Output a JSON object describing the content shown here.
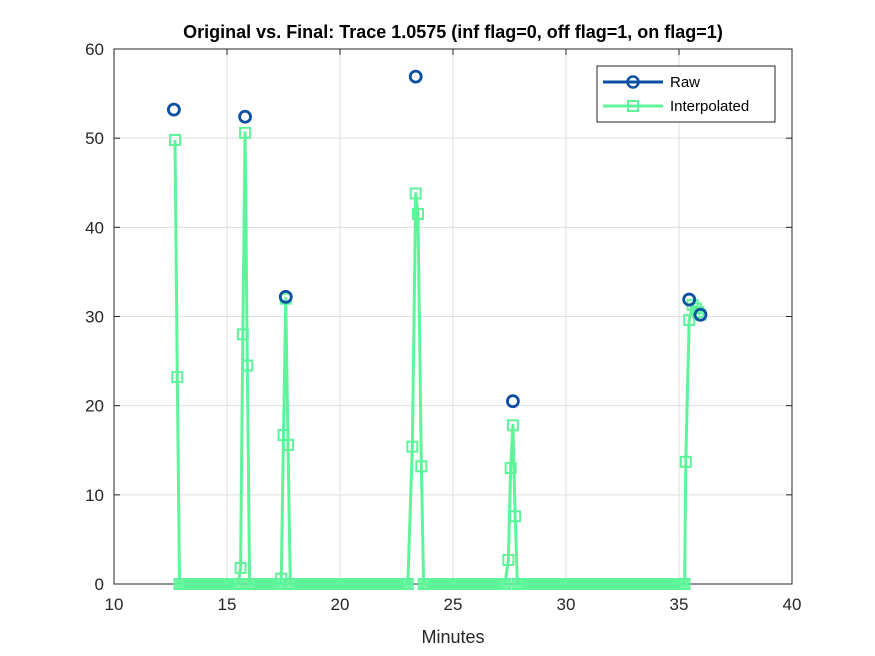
{
  "chart_data": {
    "type": "line",
    "title": "Original vs. Final: Trace 1.0575 (inf flag=0, off flag=1, on flag=1)",
    "xlabel": "Minutes",
    "ylabel": "",
    "xlim": [
      10,
      40
    ],
    "ylim": [
      0,
      60
    ],
    "xticks": [
      10,
      15,
      20,
      25,
      30,
      35,
      40
    ],
    "yticks": [
      0,
      10,
      20,
      30,
      40,
      50,
      60
    ],
    "grid": true,
    "legend_position": "top-right",
    "series": [
      {
        "name": "Raw",
        "color": "#0b4ea2",
        "marker": "circle",
        "line": false,
        "points": [
          [
            12.65,
            53.2
          ],
          [
            15.8,
            52.4
          ],
          [
            17.6,
            32.2
          ],
          [
            23.35,
            56.9
          ],
          [
            27.65,
            20.5
          ],
          [
            35.45,
            31.9
          ],
          [
            35.95,
            30.2
          ]
        ]
      },
      {
        "name": "Interpolated",
        "color": "#5ef59a",
        "marker": "square",
        "line": true,
        "points": [
          [
            12.7,
            49.8
          ],
          [
            12.8,
            23.2
          ],
          [
            12.9,
            0
          ],
          [
            13.0,
            0
          ],
          [
            13.1,
            0
          ],
          [
            13.2,
            0
          ],
          [
            13.3,
            0
          ],
          [
            13.4,
            0
          ],
          [
            13.5,
            0
          ],
          [
            13.6,
            0
          ],
          [
            13.7,
            0
          ],
          [
            13.8,
            0
          ],
          [
            13.9,
            0
          ],
          [
            14.0,
            0
          ],
          [
            14.1,
            0
          ],
          [
            14.2,
            0
          ],
          [
            14.3,
            0
          ],
          [
            14.4,
            0
          ],
          [
            14.5,
            0
          ],
          [
            14.6,
            0
          ],
          [
            14.7,
            0
          ],
          [
            14.8,
            0
          ],
          [
            14.9,
            0
          ],
          [
            15.0,
            0
          ],
          [
            15.1,
            0
          ],
          [
            15.2,
            0
          ],
          [
            15.3,
            0
          ],
          [
            15.4,
            0
          ],
          [
            15.5,
            0
          ],
          [
            15.6,
            1.8
          ],
          [
            15.7,
            28.0
          ],
          [
            15.8,
            50.6
          ],
          [
            15.9,
            24.5
          ],
          [
            16.0,
            0
          ],
          [
            16.1,
            0
          ],
          [
            16.2,
            0
          ],
          [
            16.3,
            0
          ],
          [
            16.4,
            0
          ],
          [
            16.5,
            0
          ],
          [
            16.6,
            0
          ],
          [
            16.7,
            0
          ],
          [
            16.8,
            0
          ],
          [
            16.9,
            0
          ],
          [
            17.0,
            0
          ],
          [
            17.1,
            0
          ],
          [
            17.2,
            0
          ],
          [
            17.3,
            0
          ],
          [
            17.4,
            0.6
          ],
          [
            17.5,
            16.7
          ],
          [
            17.6,
            32.0
          ],
          [
            17.7,
            15.6
          ],
          [
            17.8,
            0
          ],
          [
            17.9,
            0
          ],
          [
            18.0,
            0
          ],
          [
            18.1,
            0
          ],
          [
            18.2,
            0
          ],
          [
            18.3,
            0
          ],
          [
            18.4,
            0
          ],
          [
            18.5,
            0
          ],
          [
            18.6,
            0
          ],
          [
            18.7,
            0
          ],
          [
            18.8,
            0
          ],
          [
            18.9,
            0
          ],
          [
            19.0,
            0
          ],
          [
            19.1,
            0
          ],
          [
            19.2,
            0
          ],
          [
            19.3,
            0
          ],
          [
            19.4,
            0
          ],
          [
            19.5,
            0
          ],
          [
            19.6,
            0
          ],
          [
            19.7,
            0
          ],
          [
            19.8,
            0
          ],
          [
            19.9,
            0
          ],
          [
            20.0,
            0
          ],
          [
            20.1,
            0
          ],
          [
            20.2,
            0
          ],
          [
            20.3,
            0
          ],
          [
            20.4,
            0
          ],
          [
            20.5,
            0
          ],
          [
            20.6,
            0
          ],
          [
            20.7,
            0
          ],
          [
            20.8,
            0
          ],
          [
            20.9,
            0
          ],
          [
            21.0,
            0
          ],
          [
            21.1,
            0
          ],
          [
            21.2,
            0
          ],
          [
            21.3,
            0
          ],
          [
            21.4,
            0
          ],
          [
            21.5,
            0
          ],
          [
            21.6,
            0
          ],
          [
            21.7,
            0
          ],
          [
            21.8,
            0
          ],
          [
            21.9,
            0
          ],
          [
            22.0,
            0
          ],
          [
            22.1,
            0
          ],
          [
            22.2,
            0
          ],
          [
            22.3,
            0
          ],
          [
            22.4,
            0
          ],
          [
            22.5,
            0
          ],
          [
            22.6,
            0
          ],
          [
            22.7,
            0
          ],
          [
            22.8,
            0
          ],
          [
            22.9,
            0
          ],
          [
            23.0,
            0
          ],
          [
            23.2,
            15.4
          ],
          [
            23.35,
            43.8
          ],
          [
            23.45,
            41.5
          ],
          [
            23.6,
            13.2
          ],
          [
            23.7,
            0
          ],
          [
            23.8,
            0
          ],
          [
            23.9,
            0
          ],
          [
            24.0,
            0
          ],
          [
            24.1,
            0
          ],
          [
            24.2,
            0
          ],
          [
            24.3,
            0
          ],
          [
            24.4,
            0
          ],
          [
            24.5,
            0
          ],
          [
            24.6,
            0
          ],
          [
            24.7,
            0
          ],
          [
            24.8,
            0
          ],
          [
            24.9,
            0
          ],
          [
            25.0,
            0
          ],
          [
            25.1,
            0
          ],
          [
            25.2,
            0
          ],
          [
            25.3,
            0
          ],
          [
            25.4,
            0
          ],
          [
            25.5,
            0
          ],
          [
            25.6,
            0
          ],
          [
            25.7,
            0
          ],
          [
            25.8,
            0
          ],
          [
            25.9,
            0
          ],
          [
            26.0,
            0
          ],
          [
            26.1,
            0
          ],
          [
            26.2,
            0
          ],
          [
            26.3,
            0
          ],
          [
            26.4,
            0
          ],
          [
            26.5,
            0
          ],
          [
            26.6,
            0
          ],
          [
            26.7,
            0
          ],
          [
            26.8,
            0
          ],
          [
            26.9,
            0
          ],
          [
            27.0,
            0
          ],
          [
            27.1,
            0
          ],
          [
            27.2,
            0
          ],
          [
            27.3,
            0
          ],
          [
            27.45,
            2.7
          ],
          [
            27.55,
            13.0
          ],
          [
            27.65,
            17.8
          ],
          [
            27.75,
            7.6
          ],
          [
            27.85,
            0
          ],
          [
            27.95,
            0
          ],
          [
            28.05,
            0
          ],
          [
            28.15,
            0
          ],
          [
            28.25,
            0
          ],
          [
            28.35,
            0
          ],
          [
            28.45,
            0
          ],
          [
            28.55,
            0
          ],
          [
            28.65,
            0
          ],
          [
            28.75,
            0
          ],
          [
            28.85,
            0
          ],
          [
            28.95,
            0
          ],
          [
            29.05,
            0
          ],
          [
            29.15,
            0
          ],
          [
            29.25,
            0
          ],
          [
            29.35,
            0
          ],
          [
            29.45,
            0
          ],
          [
            29.55,
            0
          ],
          [
            29.65,
            0
          ],
          [
            29.75,
            0
          ],
          [
            29.85,
            0
          ],
          [
            29.95,
            0
          ],
          [
            30.05,
            0
          ],
          [
            30.15,
            0
          ],
          [
            30.25,
            0
          ],
          [
            30.35,
            0
          ],
          [
            30.45,
            0
          ],
          [
            30.55,
            0
          ],
          [
            30.65,
            0
          ],
          [
            30.75,
            0
          ],
          [
            30.85,
            0
          ],
          [
            30.95,
            0
          ],
          [
            31.05,
            0
          ],
          [
            31.15,
            0
          ],
          [
            31.25,
            0
          ],
          [
            31.35,
            0
          ],
          [
            31.45,
            0
          ],
          [
            31.55,
            0
          ],
          [
            31.65,
            0
          ],
          [
            31.75,
            0
          ],
          [
            31.85,
            0
          ],
          [
            31.95,
            0
          ],
          [
            32.05,
            0
          ],
          [
            32.15,
            0
          ],
          [
            32.25,
            0
          ],
          [
            32.35,
            0
          ],
          [
            32.45,
            0
          ],
          [
            32.55,
            0
          ],
          [
            32.65,
            0
          ],
          [
            32.75,
            0
          ],
          [
            32.85,
            0
          ],
          [
            32.95,
            0
          ],
          [
            33.05,
            0
          ],
          [
            33.15,
            0
          ],
          [
            33.25,
            0
          ],
          [
            33.35,
            0
          ],
          [
            33.45,
            0
          ],
          [
            33.55,
            0
          ],
          [
            33.65,
            0
          ],
          [
            33.75,
            0
          ],
          [
            33.85,
            0
          ],
          [
            33.95,
            0
          ],
          [
            34.05,
            0
          ],
          [
            34.15,
            0
          ],
          [
            34.25,
            0
          ],
          [
            34.35,
            0
          ],
          [
            34.45,
            0
          ],
          [
            34.55,
            0
          ],
          [
            34.65,
            0
          ],
          [
            34.75,
            0
          ],
          [
            34.85,
            0
          ],
          [
            34.95,
            0
          ],
          [
            35.05,
            0
          ],
          [
            35.15,
            0
          ],
          [
            35.25,
            0
          ],
          [
            35.3,
            13.7
          ],
          [
            35.45,
            29.6
          ],
          [
            35.6,
            31.3
          ],
          [
            35.75,
            30.9
          ],
          [
            35.85,
            30.5
          ],
          [
            35.95,
            30.2
          ]
        ]
      }
    ]
  }
}
